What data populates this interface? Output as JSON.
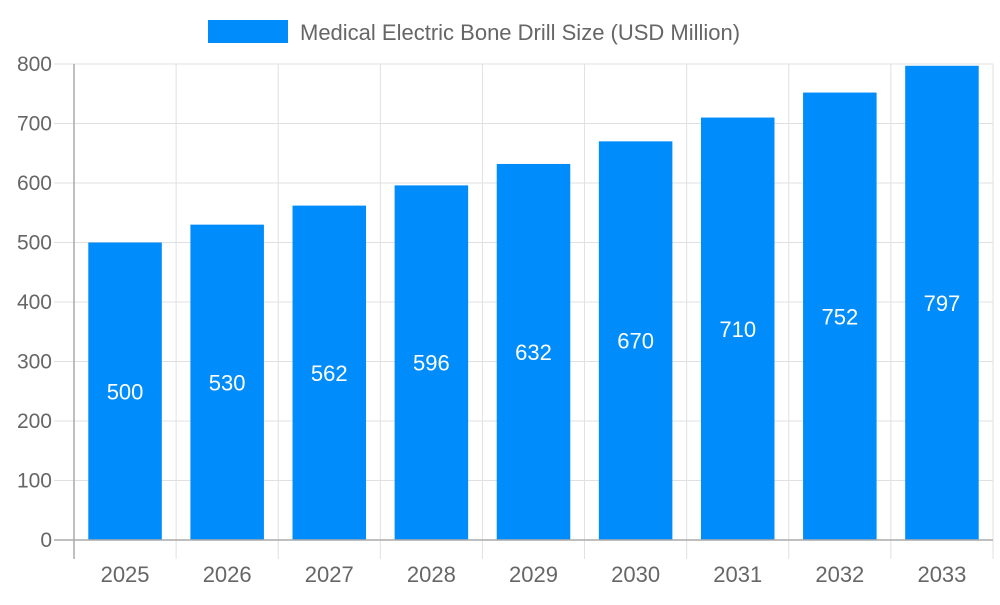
{
  "chart_data": {
    "type": "bar",
    "title": "",
    "xlabel": "",
    "ylabel": "",
    "categories": [
      "2025",
      "2026",
      "2027",
      "2028",
      "2029",
      "2030",
      "2031",
      "2032",
      "2033"
    ],
    "series": [
      {
        "name": "Medical Electric Bone Drill Size (USD Million)",
        "values": [
          500,
          530,
          562,
          596,
          632,
          670,
          710,
          752,
          797
        ],
        "color": "#008cfa"
      }
    ],
    "ylim": [
      0,
      800
    ],
    "yticks": [
      0,
      100,
      200,
      300,
      400,
      500,
      600,
      700,
      800
    ],
    "grid": true,
    "legend": "top-center",
    "data_labels": true
  }
}
